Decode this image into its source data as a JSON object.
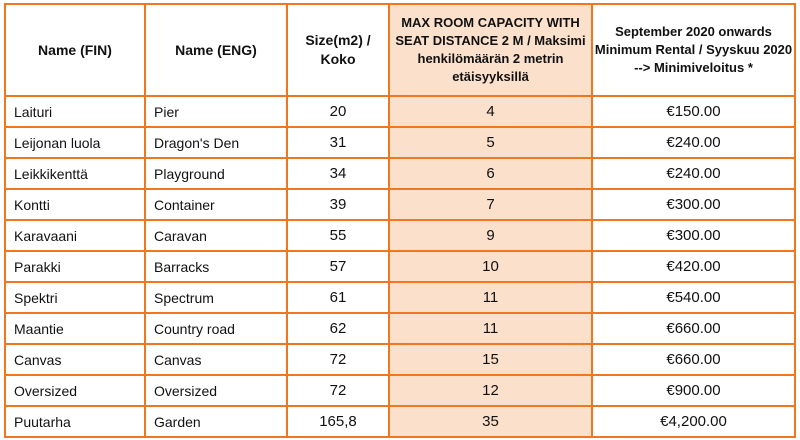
{
  "table": {
    "headers": [
      "Name (FIN)",
      "Name (ENG)",
      "Size(m2) / Koko",
      "MAX ROOM CAPACITY WITH SEAT DISTANCE 2 M / Maksimi henkilömäärän 2 metrin etäisyyksillä",
      "September 2020 onwards Minimum Rental / Syyskuu 2020 --> Minimiveloitus *"
    ],
    "rows": [
      {
        "fin": "Laituri",
        "eng": "Pier",
        "size": "20",
        "capacity": "4",
        "rental": "€150.00"
      },
      {
        "fin": "Leijonan luola",
        "eng": "Dragon's Den",
        "size": "31",
        "capacity": "5",
        "rental": "€240.00"
      },
      {
        "fin": "Leikkikenttä",
        "eng": "Playground",
        "size": "34",
        "capacity": "6",
        "rental": "€240.00"
      },
      {
        "fin": "Kontti",
        "eng": "Container",
        "size": "39",
        "capacity": "7",
        "rental": "€300.00"
      },
      {
        "fin": "Karavaani",
        "eng": "Caravan",
        "size": "55",
        "capacity": "9",
        "rental": "€300.00"
      },
      {
        "fin": "Parakki",
        "eng": "Barracks",
        "size": "57",
        "capacity": "10",
        "rental": "€420.00"
      },
      {
        "fin": "Spektri",
        "eng": "Spectrum",
        "size": "61",
        "capacity": "11",
        "rental": "€540.00"
      },
      {
        "fin": "Maantie",
        "eng": "Country road",
        "size": "62",
        "capacity": "11",
        "rental": "€660.00"
      },
      {
        "fin": "Canvas",
        "eng": "Canvas",
        "size": "72",
        "capacity": "15",
        "rental": "€660.00"
      },
      {
        "fin": "Oversized",
        "eng": "Oversized",
        "size": "72",
        "capacity": "12",
        "rental": "€900.00"
      },
      {
        "fin": "Puutarha",
        "eng": "Garden",
        "size": "165,8",
        "capacity": "35",
        "rental": "€4,200.00"
      }
    ]
  },
  "colors": {
    "border": "#f0761f",
    "highlight": "#fbe0cc"
  }
}
